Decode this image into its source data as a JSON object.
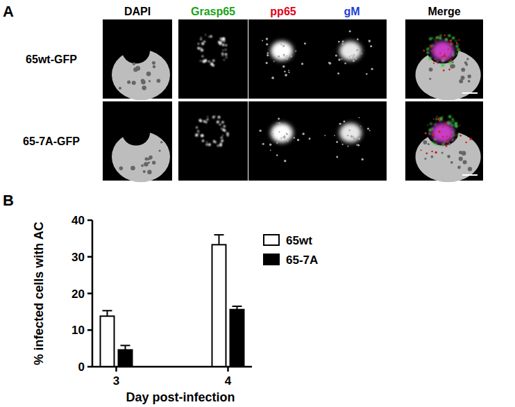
{
  "chart_data": {
    "type": "bar",
    "y_label": "% infected cells with AC",
    "x_label": "Day post-infection",
    "categories": [
      "3",
      "4"
    ],
    "series": [
      {
        "name": "65wt",
        "color": "#ffffff",
        "values": [
          13.8,
          33.3
        ],
        "errors": [
          1.5,
          2.7
        ]
      },
      {
        "name": "65-7A",
        "color": "#000000",
        "values": [
          4.6,
          15.6
        ],
        "errors": [
          1.2,
          0.9
        ]
      }
    ],
    "ylim": [
      0,
      40
    ],
    "yticks": [
      0,
      10,
      20,
      30,
      40
    ],
    "grid": false,
    "legend": "upper right"
  },
  "figure": {
    "panel_a_label": "A",
    "panel_b_label": "B",
    "channels": [
      {
        "name": "DAPI",
        "color": "#000000"
      },
      {
        "name": "Grasp65",
        "color": "#1aa31a"
      },
      {
        "name": "pp65",
        "color": "#e0001a"
      },
      {
        "name": "gM",
        "color": "#1f3fd8"
      },
      {
        "name": "Merge",
        "color": "#000000"
      }
    ],
    "rows": [
      "65wt-GFP",
      "65-7A-GFP"
    ]
  }
}
